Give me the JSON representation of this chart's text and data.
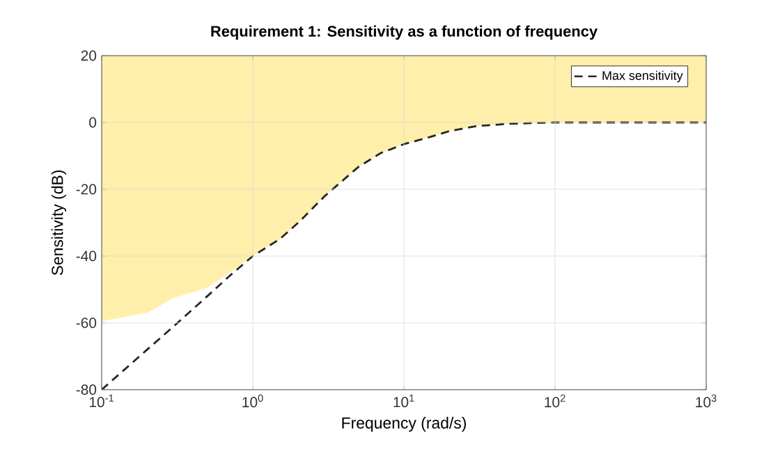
{
  "chart_data": {
    "type": "line",
    "title": "Requirement 1: Sensitivity as a function of frequency",
    "xlabel": "Frequency (rad/s)",
    "ylabel": "Sensitivity (dB)",
    "x": [
      0.1,
      0.2,
      0.3,
      0.5,
      0.7,
      1,
      1.5,
      2,
      3,
      5,
      7,
      10,
      15,
      20,
      30,
      50,
      70,
      100,
      200,
      500,
      1000
    ],
    "series": [
      {
        "name": "Max sensitivity",
        "color": "#262626",
        "line_style": "dashed",
        "values": [
          -80,
          -68,
          -61,
          -52,
          -46,
          -40,
          -35,
          -30,
          -22,
          -13.3,
          -9.2,
          -6.5,
          -4.3,
          -2.6,
          -1.1,
          -0.4,
          -0.2,
          0,
          0,
          0,
          0
        ],
        "lower": [
          -59.5,
          -57,
          -52.5,
          -49.5,
          -45,
          -40,
          -35,
          -30,
          -22,
          -13.3,
          -9.2,
          -6.5,
          -4.3,
          -2.6,
          -1.1,
          -0.4,
          -0.2,
          0,
          0,
          0,
          0
        ],
        "upper": [
          20,
          20,
          20,
          20,
          20,
          20,
          20,
          20,
          20,
          20,
          20,
          20,
          20,
          20,
          20,
          20,
          20,
          20,
          20,
          20,
          20
        ]
      }
    ],
    "xlim": [
      0.1,
      1000
    ],
    "ylim": [
      -80,
      20
    ],
    "log": "x",
    "xticks": [
      {
        "value": 0.1,
        "label": "10$^{-1}$"
      },
      {
        "value": 1,
        "label": "10$^{0}$"
      },
      {
        "value": 10,
        "label": "10$^{1}$"
      },
      {
        "value": 100,
        "label": "10$^{2}$"
      },
      {
        "value": 1000,
        "label": "10$^{3}$"
      }
    ],
    "yticks": [
      -80,
      -60,
      -40,
      -20,
      0,
      20
    ],
    "grid": true,
    "legend": "top right"
  }
}
